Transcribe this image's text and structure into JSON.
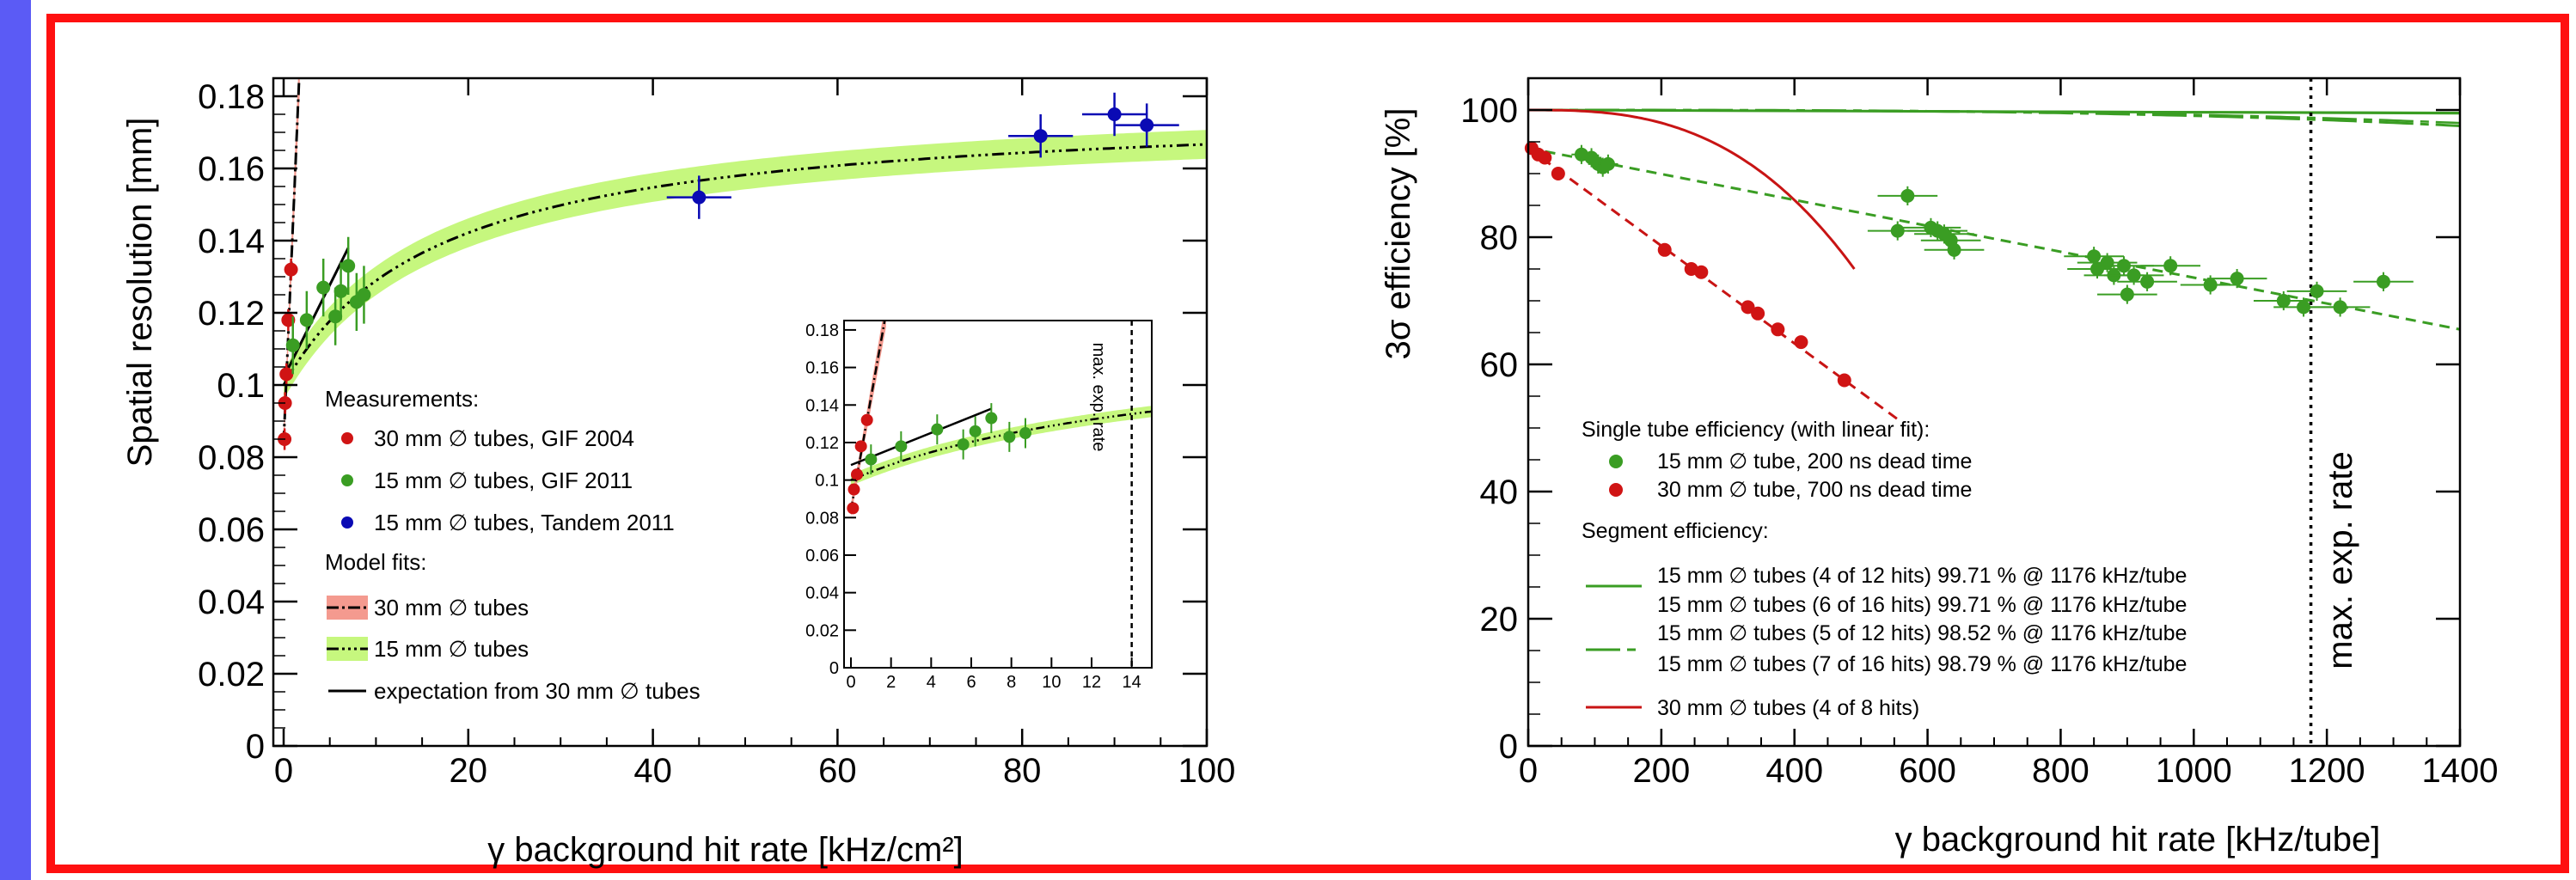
{
  "chart_data": [
    {
      "type": "scatter",
      "xlabel": "γ background hit rate [kHz/cm²]",
      "ylabel": "Spatial resolution [mm]",
      "xlim": [
        0,
        100
      ],
      "ylim": [
        0,
        0.185
      ],
      "x_ticks": [
        "0",
        "20",
        "40",
        "60",
        "80",
        "100"
      ],
      "y_ticks": [
        "0",
        "0.02",
        "0.04",
        "0.06",
        "0.08",
        "0.1",
        "0.12",
        "0.14",
        "0.16",
        "0.18"
      ],
      "legend": {
        "header_measurements": "Measurements:",
        "header_fits": "Model fits:",
        "entries": [
          "30 mm ∅ tubes, GIF 2004",
          "15 mm ∅ tubes, GIF 2011",
          "15 mm ∅ tubes, Tandem 2011",
          "30 mm ∅ tubes",
          "15 mm ∅ tubes",
          "expectation from 30 mm ∅ tubes"
        ]
      },
      "colors": {
        "red": "#d01414",
        "green": "#3a9d23",
        "blue": "#0a0ab4",
        "band_red": "#f49a8f",
        "band_green": "#c6f77e"
      },
      "series": [
        {
          "name": "30 mm ∅ tubes, GIF 2004",
          "points": [
            [
              0.1,
              0.085
            ],
            [
              0.15,
              0.095
            ],
            [
              0.3,
              0.103
            ],
            [
              0.5,
              0.118
            ],
            [
              0.8,
              0.132
            ]
          ]
        },
        {
          "name": "15 mm ∅ tubes, GIF 2011",
          "points": [
            [
              1,
              0.111
            ],
            [
              2.5,
              0.118
            ],
            [
              4.3,
              0.127
            ],
            [
              5.6,
              0.119
            ],
            [
              6.2,
              0.126
            ],
            [
              7,
              0.133
            ],
            [
              7.9,
              0.123
            ],
            [
              8.7,
              0.125
            ]
          ]
        },
        {
          "name": "15 mm ∅ tubes, Tandem 2011",
          "points": [
            [
              45,
              0.152
            ],
            [
              82,
              0.169
            ],
            [
              90,
              0.175
            ],
            [
              93.5,
              0.172
            ]
          ]
        }
      ],
      "inset": {
        "xlim": [
          0,
          15
        ],
        "ylim": [
          0,
          0.185
        ],
        "x_ticks": [
          "0",
          "2",
          "4",
          "6",
          "8",
          "10",
          "12",
          "14"
        ],
        "y_ticks": [
          "0",
          "0.02",
          "0.04",
          "0.06",
          "0.08",
          "0.1",
          "0.12",
          "0.14",
          "0.16",
          "0.18"
        ],
        "annotation": "max. exp. rate",
        "vline_x": 14
      }
    },
    {
      "type": "scatter",
      "xlabel": "γ background hit rate [kHz/tube]",
      "ylabel": "3σ efficiency [%]",
      "xlim": [
        0,
        1400
      ],
      "ylim": [
        0,
        105
      ],
      "x_ticks": [
        "0",
        "200",
        "400",
        "600",
        "800",
        "1000",
        "1200",
        "1400"
      ],
      "y_ticks": [
        "0",
        "20",
        "40",
        "60",
        "80",
        "100"
      ],
      "annotation": "max. exp. rate",
      "vline_x": 1176,
      "legend": {
        "header_single": "Single tube efficiency (with linear fit):",
        "header_segment": "Segment efficiency:",
        "entries": [
          "15 mm ∅ tube, 200 ns dead time",
          "30 mm ∅ tube, 700 ns dead time",
          "15 mm ∅ tubes (4 of 12 hits) 99.71 % @ 1176 kHz/tube",
          "15 mm ∅ tubes (6 of 16 hits) 99.71 % @ 1176 kHz/tube",
          "15 mm ∅ tubes (5 of 12 hits) 98.52 % @ 1176 kHz/tube",
          "15 mm ∅ tubes (7 of 16 hits) 98.79 % @ 1176 kHz/tube",
          "30 mm ∅ tubes (4 of 8 hits)"
        ]
      },
      "series": [
        {
          "name": "15 mm ∅ tube, 200 ns dead time",
          "points": [
            [
              80,
              93
            ],
            [
              95,
              92.5
            ],
            [
              105,
              91.5
            ],
            [
              112,
              91
            ],
            [
              120,
              91.5
            ],
            [
              555,
              81
            ],
            [
              570,
              86.5
            ],
            [
              605,
              81.5
            ],
            [
              615,
              81
            ],
            [
              625,
              80.5
            ],
            [
              635,
              79.5
            ],
            [
              640,
              78
            ],
            [
              850,
              77
            ],
            [
              855,
              75
            ],
            [
              870,
              76
            ],
            [
              880,
              74
            ],
            [
              895,
              75.5
            ],
            [
              900,
              71
            ],
            [
              910,
              74
            ],
            [
              930,
              73
            ],
            [
              965,
              75.5
            ],
            [
              1025,
              72.5
            ],
            [
              1065,
              73.5
            ],
            [
              1135,
              70
            ],
            [
              1165,
              69
            ],
            [
              1185,
              71.5
            ],
            [
              1220,
              69
            ],
            [
              1285,
              73
            ]
          ]
        },
        {
          "name": "30 mm ∅ tube, 700 ns dead time",
          "points": [
            [
              5,
              94
            ],
            [
              15,
              93
            ],
            [
              25,
              92.5
            ],
            [
              45,
              90
            ],
            [
              205,
              78
            ],
            [
              245,
              75
            ],
            [
              260,
              74.5
            ],
            [
              330,
              69
            ],
            [
              345,
              68
            ],
            [
              375,
              65.5
            ],
            [
              410,
              63.5
            ],
            [
              475,
              57.5
            ]
          ]
        }
      ]
    }
  ]
}
